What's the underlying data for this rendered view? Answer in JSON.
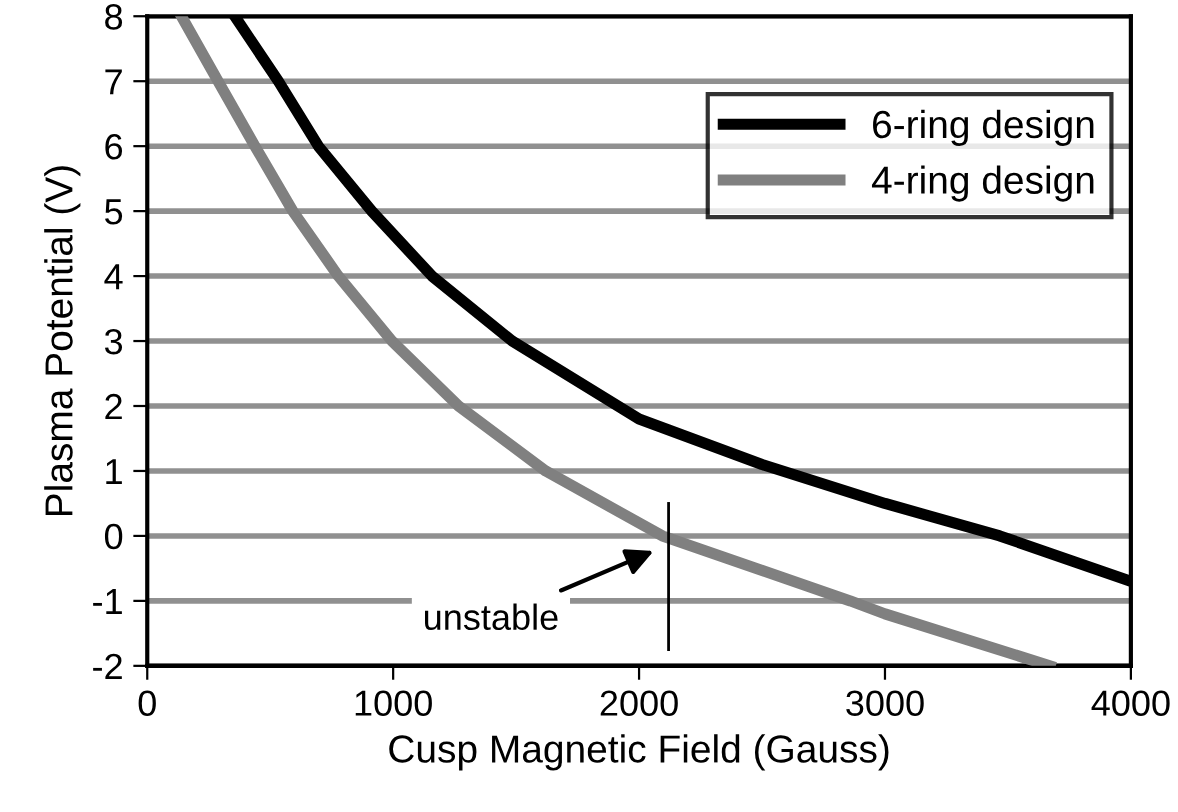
{
  "chart_data": {
    "type": "line",
    "xlabel": "Cusp Magnetic Field (Gauss)",
    "ylabel": "Plasma Potential (V)",
    "xlim": [
      0,
      4000
    ],
    "xticks": [
      0,
      1000,
      2000,
      3000,
      4000
    ],
    "ylim": [
      -2,
      8
    ],
    "yticks": [
      -2,
      -1,
      0,
      1,
      2,
      3,
      4,
      5,
      6,
      7,
      8
    ],
    "grid": "y",
    "legend": "top right",
    "marker": "none",
    "line_style": "solid",
    "series": [
      {
        "name": "6-ring design",
        "color": "#000000",
        "x": [
          356,
          533,
          696,
          913,
          1158,
          1484,
          2000,
          2500,
          3000,
          3467,
          4000
        ],
        "values": [
          8,
          7,
          6,
          5,
          4,
          3,
          1.8,
          1.1,
          0.5,
          0,
          -0.7
        ]
      },
      {
        "name": "4-ring design",
        "color": "#808080",
        "x": [
          139,
          288,
          438,
          592,
          777,
          995,
          1266,
          1620,
          2095,
          2859,
          3000,
          3671
        ],
        "values": [
          8,
          7,
          6,
          5,
          4,
          3,
          2,
          1,
          0,
          -1,
          -1.2,
          -2
        ]
      }
    ],
    "annotations": [
      "unstable"
    ]
  }
}
